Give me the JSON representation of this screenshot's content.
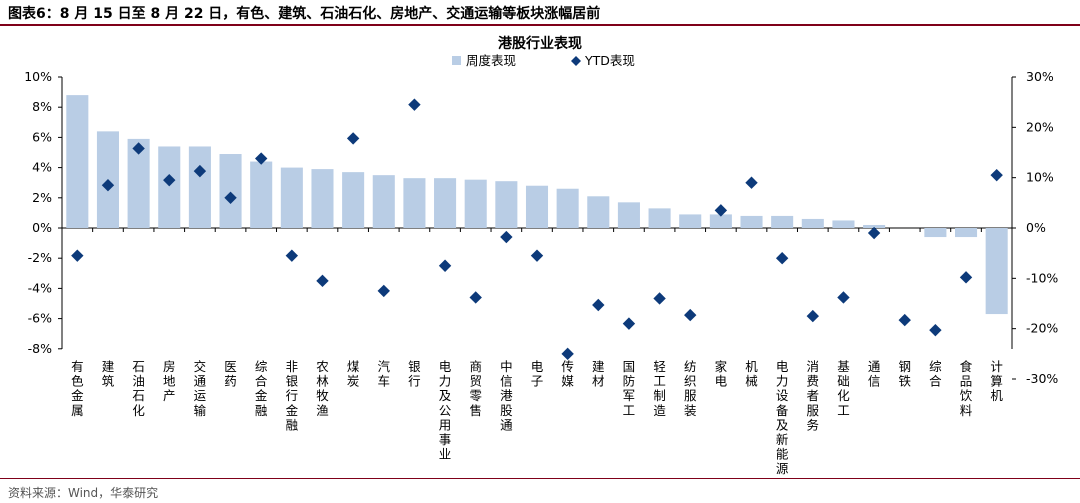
{
  "header": {
    "title": "图表6：8 月 15 日至 8 月 22 日，有色、建筑、石油石化、房地产、交通运输等板块涨幅居前"
  },
  "footer": {
    "source": "资料来源：Wind，华泰研究"
  },
  "colors": {
    "bar": "#b9cde5",
    "marker": "#0d3a7a",
    "rule": "#7f0019"
  },
  "chart_data": {
    "type": "bar",
    "title": "港股行业表现",
    "legend_placement": "top-center",
    "grid": false,
    "categories": [
      "有色金属",
      "建筑",
      "石油石化",
      "房地产",
      "交通运输",
      "医药",
      "综合金融",
      "非银行金融",
      "农林牧渔",
      "煤炭",
      "汽车",
      "银行",
      "电力及公用事业",
      "商贸零售",
      "中信港股通",
      "电子",
      "传媒",
      "建材",
      "国防军工",
      "轻工制造",
      "纺织服装",
      "家电",
      "机械",
      "电力设备及新能源",
      "消费者服务",
      "基础化工",
      "通信",
      "钢铁",
      "综合",
      "食品饮料",
      "计算机"
    ],
    "series": [
      {
        "name": "周度表现",
        "type": "bar",
        "axis": "left",
        "values": [
          8.8,
          6.4,
          5.9,
          5.4,
          5.4,
          4.9,
          4.4,
          4.0,
          3.9,
          3.7,
          3.5,
          3.3,
          3.3,
          3.2,
          3.1,
          2.8,
          2.6,
          2.1,
          1.7,
          1.3,
          0.9,
          0.9,
          0.8,
          0.8,
          0.6,
          0.5,
          0.2,
          0.0,
          -0.6,
          -0.6,
          -5.7
        ]
      },
      {
        "name": "YTD表现",
        "type": "scatter",
        "axis": "right",
        "values": [
          -5.5,
          8.5,
          15.8,
          9.5,
          11.3,
          6.0,
          13.8,
          -5.5,
          -10.5,
          17.8,
          -12.5,
          24.5,
          -7.5,
          -13.8,
          -1.8,
          -5.5,
          -25.0,
          -15.3,
          -19.0,
          -14.0,
          -17.3,
          3.5,
          9.0,
          -6.0,
          -17.5,
          -13.8,
          -1.0,
          -18.3,
          -20.3,
          -9.8,
          10.5
        ]
      }
    ],
    "ylim_left": [
      -8,
      10
    ],
    "yticks_left": [
      "-8%",
      "-6%",
      "-4%",
      "-2%",
      "0%",
      "2%",
      "4%",
      "6%",
      "8%",
      "10%"
    ],
    "ylim_right": [
      -30,
      30
    ],
    "yticks_right": [
      "-30%",
      "-20%",
      "-10%",
      "0%",
      "10%",
      "20%",
      "30%"
    ]
  }
}
